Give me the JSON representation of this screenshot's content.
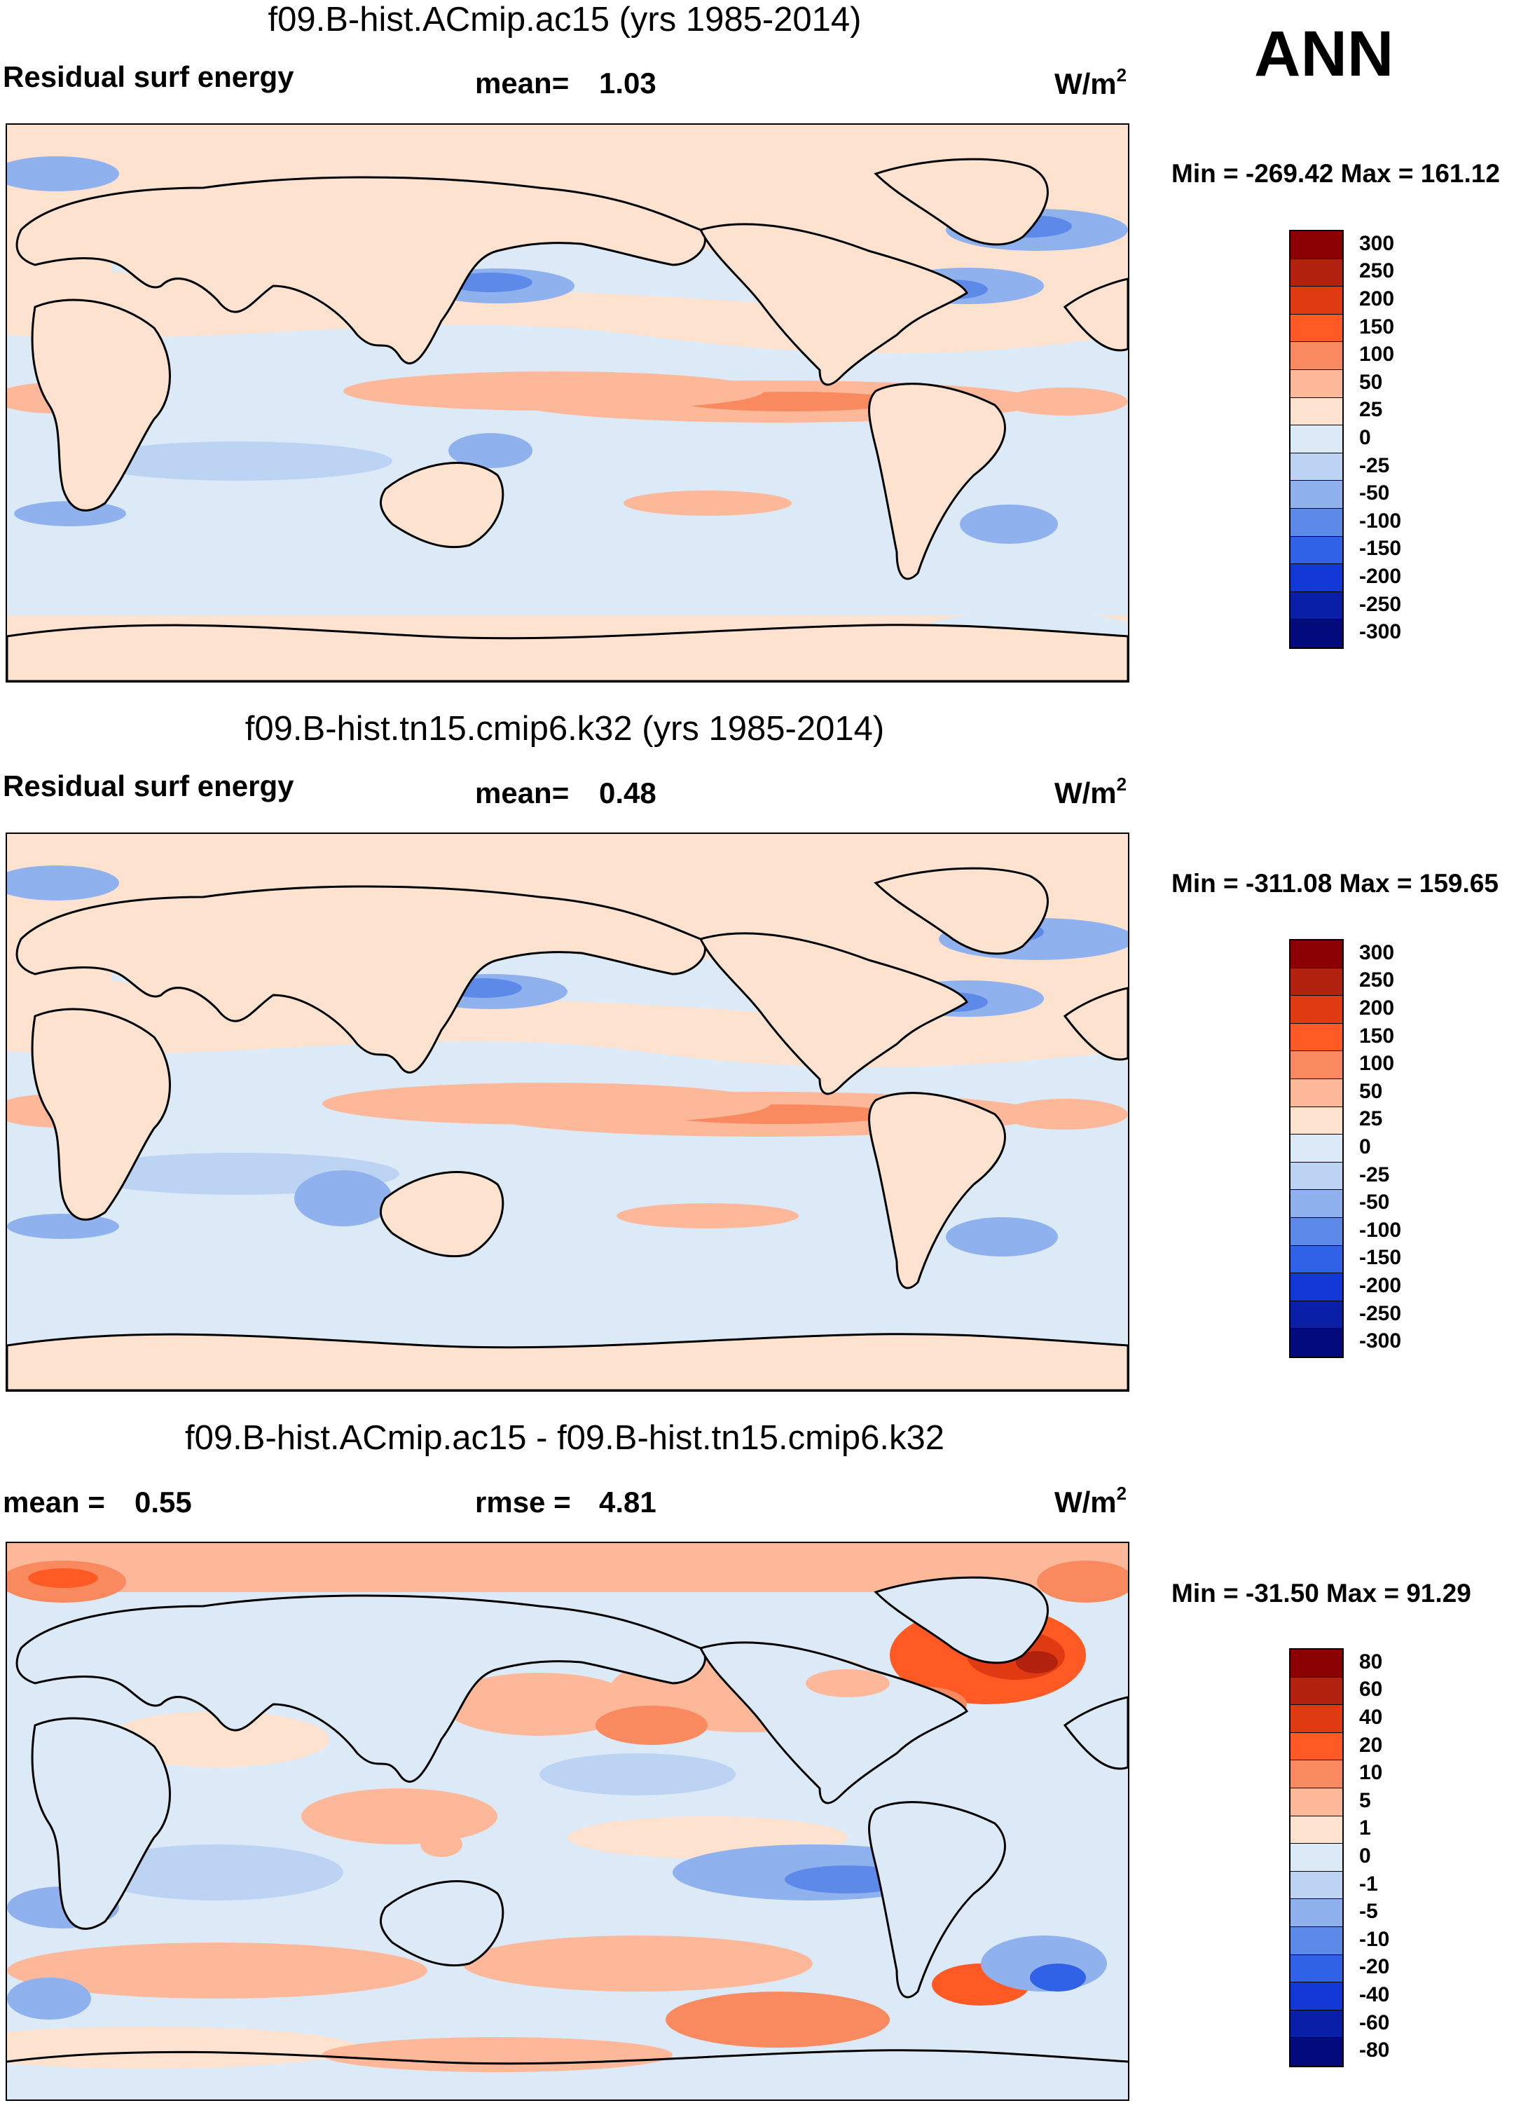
{
  "season": "ANN",
  "panels": [
    {
      "title": "f09.B-hist.ACmip.ac15 (yrs 1985-2014)",
      "left_label": "Residual surf energy",
      "mid_label": "mean=",
      "mid_value": "1.03",
      "units": "W/m",
      "units_sup": "2",
      "minmax": "Min = -269.42 Max = 161.12",
      "colorbar": {
        "levels": [
          "300",
          "250",
          "200",
          "150",
          "100",
          "50",
          "25",
          "0",
          "-25",
          "-50",
          "-100",
          "-150",
          "-200",
          "-250",
          "-300"
        ],
        "colors": [
          "#8b0000",
          "#b2220e",
          "#df3a12",
          "#ff5a23",
          "#f98a60",
          "#fdb89a",
          "#fde2cf",
          "#dceaf8",
          "#bcd3f4",
          "#8fb2ef",
          "#5d8ae8",
          "#2f62e6",
          "#1239d5",
          "#0a1fa8",
          "#020a7c"
        ]
      }
    },
    {
      "title": "f09.B-hist.tn15.cmip6.k32 (yrs 1985-2014)",
      "left_label": "Residual surf energy",
      "mid_label": "mean=",
      "mid_value": "0.48",
      "units": "W/m",
      "units_sup": "2",
      "minmax": "Min = -311.08 Max = 159.65",
      "colorbar": {
        "levels": [
          "300",
          "250",
          "200",
          "150",
          "100",
          "50",
          "25",
          "0",
          "-25",
          "-50",
          "-100",
          "-150",
          "-200",
          "-250",
          "-300"
        ],
        "colors": [
          "#8b0000",
          "#b2220e",
          "#df3a12",
          "#ff5a23",
          "#f98a60",
          "#fdb89a",
          "#fde2cf",
          "#dceaf8",
          "#bcd3f4",
          "#8fb2ef",
          "#5d8ae8",
          "#2f62e6",
          "#1239d5",
          "#0a1fa8",
          "#020a7c"
        ]
      }
    },
    {
      "title": "f09.B-hist.ACmip.ac15 - f09.B-hist.tn15.cmip6.k32",
      "left_label": "mean =",
      "left_value": "0.55",
      "mid_label": "rmse =",
      "mid_value": "4.81",
      "units": "W/m",
      "units_sup": "2",
      "minmax": "Min = -31.50 Max =  91.29",
      "colorbar": {
        "levels": [
          "80",
          "60",
          "40",
          "20",
          "10",
          "5",
          "1",
          "0",
          "-1",
          "-5",
          "-10",
          "-20",
          "-40",
          "-60",
          "-80"
        ],
        "colors": [
          "#8b0000",
          "#b2220e",
          "#df3a12",
          "#ff5a23",
          "#f98a60",
          "#fdb89a",
          "#fde2cf",
          "#dceaf8",
          "#bcd3f4",
          "#8fb2ef",
          "#5d8ae8",
          "#2f62e6",
          "#1239d5",
          "#0a1fa8",
          "#020a7c"
        ]
      }
    }
  ]
}
